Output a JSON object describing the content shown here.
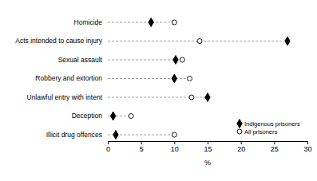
{
  "chart_data": {
    "type": "dot",
    "orientation": "horizontal",
    "categories": [
      "Homicide",
      "Acts intended to cause injury",
      "Sexual assault",
      "Robbery and extortion",
      "Unlawful entry with intent",
      "Deception",
      "Illicit drug offences"
    ],
    "series": [
      {
        "name": "Indigenous prisoners",
        "color": "#000000",
        "marker": "diamond",
        "values": [
          6.5,
          27,
          10.2,
          10,
          15,
          0.8,
          1.2
        ]
      },
      {
        "name": "All prisoners",
        "color": "#000000",
        "marker": "circle-open",
        "values": [
          10,
          13.8,
          11.2,
          12.3,
          12.6,
          3.5,
          10
        ]
      }
    ],
    "x_label": "%",
    "xlim": [
      0,
      30
    ],
    "xticks": [
      0,
      5,
      10,
      15,
      20,
      25,
      30
    ],
    "line_style": "dashed",
    "legend": "lower right"
  }
}
